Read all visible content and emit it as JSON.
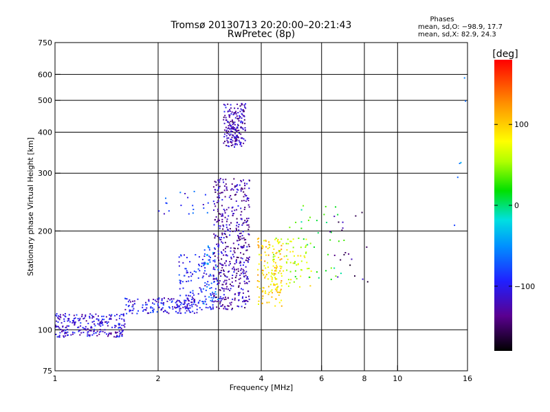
{
  "chart_data": {
    "type": "scatter",
    "title": "Tromsø 20130713 20:20:00–20:21:43",
    "subtitle": "RwPretec (8p)",
    "stats": {
      "heading": "Phases",
      "line1": "mean, sd,O: −98.9, 17.7",
      "line2": "mean, sd,X:  82.9, 24.3"
    },
    "xlabel": "Frequency [MHz]",
    "ylabel": "Stationary phase Virtual Height [km]",
    "x_scale": "log",
    "y_scale": "log",
    "xlim": [
      1,
      16
    ],
    "ylim": [
      75,
      750
    ],
    "x_ticks": [
      1,
      2,
      4,
      6,
      8,
      10,
      16
    ],
    "x_tick_labels": [
      "1",
      "2",
      "4",
      "6",
      "8",
      "10",
      "16"
    ],
    "x_gridlines": [
      2,
      3,
      4,
      6,
      8,
      10
    ],
    "y_ticks": [
      75,
      100,
      200,
      300,
      400,
      500,
      600,
      750
    ],
    "y_tick_labels": [
      "75",
      "100",
      "200",
      "300",
      "400",
      "500",
      "600",
      "750"
    ],
    "grid": true,
    "colorbar": {
      "label": "[deg]",
      "min": -180,
      "max": 180,
      "ticks": [
        100,
        0,
        -100
      ],
      "tick_labels": [
        "100",
        "0",
        "−100"
      ]
    },
    "clusters": [
      {
        "x": [
          1.0,
          1.6
        ],
        "y": [
          95,
          112
        ],
        "phase": -110,
        "count": 240
      },
      {
        "x": [
          1.6,
          2.6
        ],
        "y": [
          112,
          125
        ],
        "phase": -105,
        "count": 160
      },
      {
        "x": [
          2.3,
          2.9
        ],
        "y": [
          115,
          170
        ],
        "phase": -95,
        "count": 130
      },
      {
        "x": [
          2.7,
          3.0
        ],
        "y": [
          120,
          180
        ],
        "phase": -60,
        "count": 40
      },
      {
        "x": [
          2.9,
          3.7
        ],
        "y": [
          115,
          290
        ],
        "phase": -125,
        "count": 480
      },
      {
        "x": [
          3.1,
          3.6
        ],
        "y": [
          360,
          490
        ],
        "phase": -125,
        "count": 200
      },
      {
        "x": [
          3.9,
          4.6
        ],
        "y": [
          118,
          190
        ],
        "phase": 95,
        "count": 140
      },
      {
        "x": [
          4.2,
          5.6
        ],
        "y": [
          135,
          190
        ],
        "phase": 70,
        "count": 70
      },
      {
        "x": [
          4.8,
          7.0
        ],
        "y": [
          140,
          240
        ],
        "phase": 20,
        "count": 40
      },
      {
        "x": [
          2.0,
          2.8
        ],
        "y": [
          225,
          265
        ],
        "phase": -90,
        "count": 20
      },
      {
        "x": [
          6.3,
          8.6
        ],
        "y": [
          140,
          230
        ],
        "phase": -140,
        "count": 20
      },
      {
        "x": [
          14.3,
          15.8
        ],
        "y": [
          200,
          640
        ],
        "phase": -60,
        "count": 6
      }
    ]
  }
}
